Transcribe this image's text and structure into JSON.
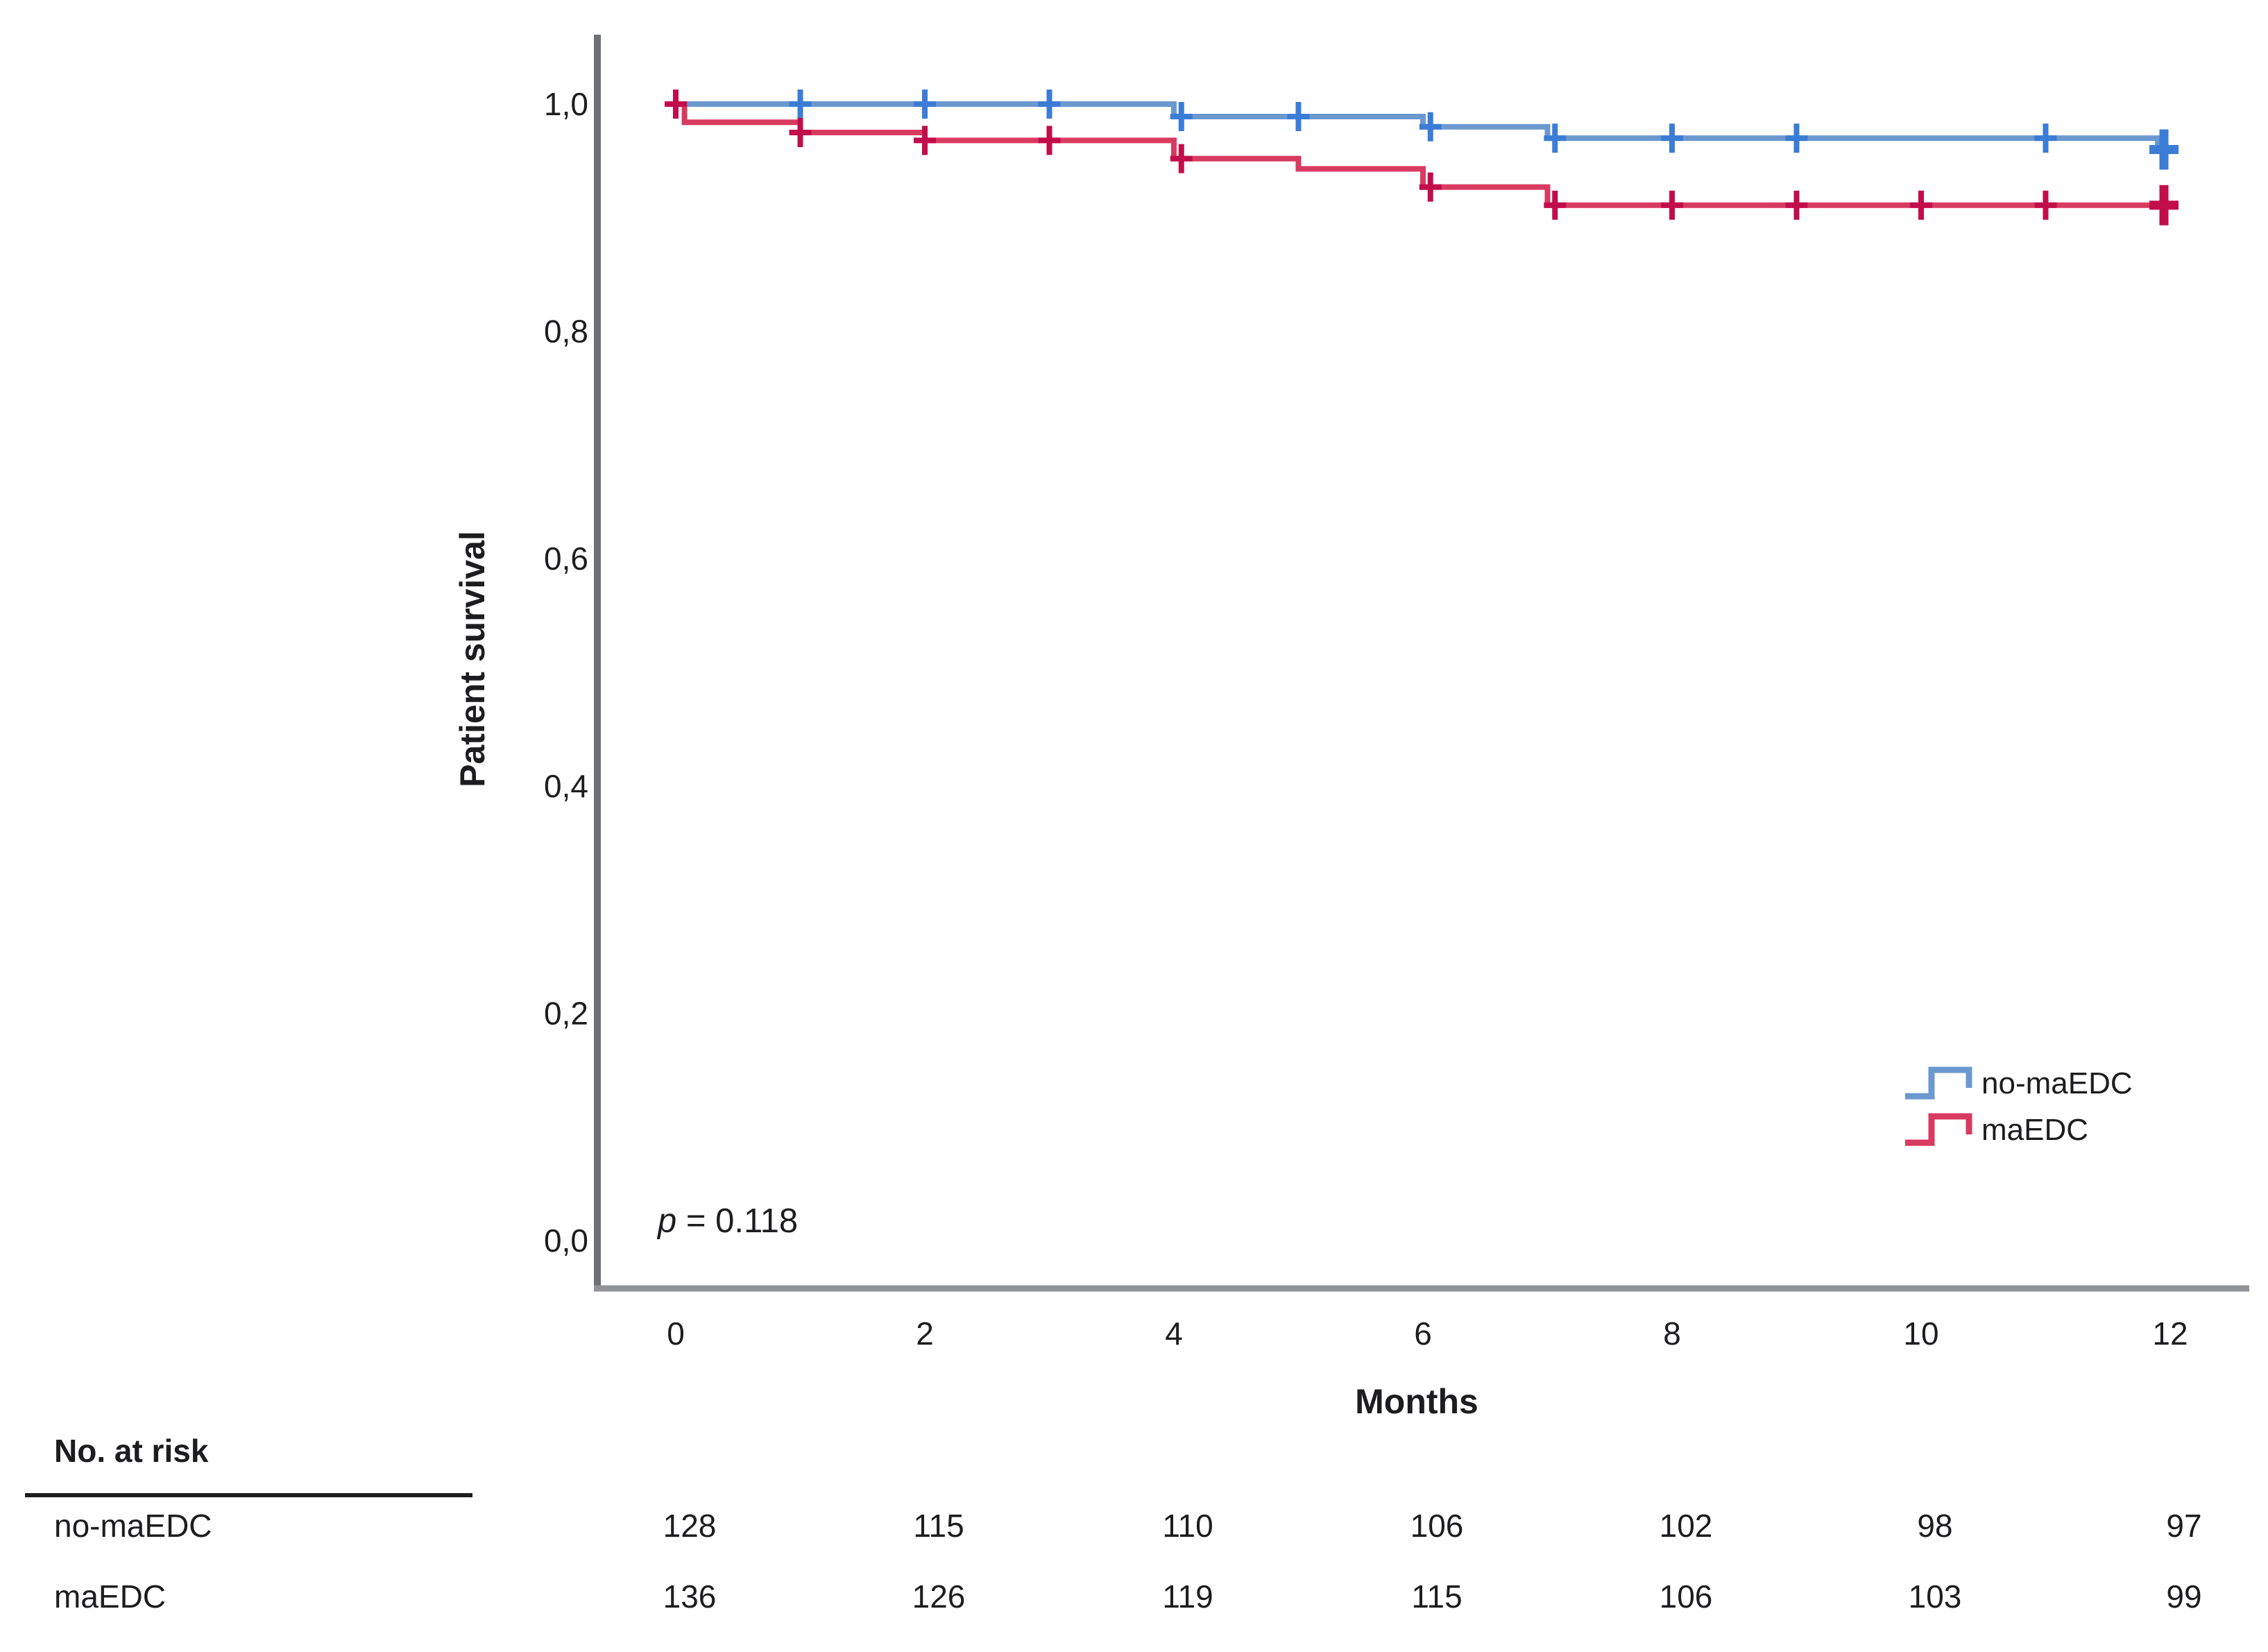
{
  "figure": {
    "background": "#ffffff",
    "text_color": "#1d1d1f",
    "y_axis_color": "#6e7073",
    "x_axis_color": "#919396"
  },
  "chart_data": {
    "type": "line",
    "subtype": "kaplan_meier_step_curves",
    "title": "",
    "xlabel": "Months",
    "ylabel": "Patient survival",
    "xlim": [
      0,
      12
    ],
    "ylim": [
      0.0,
      1.0
    ],
    "grid": false,
    "x_ticks": [
      "0",
      "2",
      "4",
      "6",
      "8",
      "10",
      "12"
    ],
    "x_tick_values": [
      0,
      2,
      4,
      6,
      8,
      10,
      12
    ],
    "y_ticks": [
      {
        "label": "0,0",
        "value": 0.0
      },
      {
        "label": "0,2",
        "value": 0.2
      },
      {
        "label": "0,4",
        "value": 0.4
      },
      {
        "label": "0,6",
        "value": 0.6
      },
      {
        "label": "0,8",
        "value": 0.8
      },
      {
        "label": "1,0",
        "value": 1.0
      }
    ],
    "annotation": {
      "symbol": "p",
      "rest": " = 0.118"
    },
    "legend_position": "right-lower",
    "series": [
      {
        "name": "no-maEDC",
        "line_color": "#6B99CF",
        "marker_color": "#3B7CD6",
        "steps": [
          [
            0,
            1.0
          ],
          [
            4,
            0.989
          ],
          [
            6,
            0.98
          ],
          [
            7,
            0.97
          ],
          [
            11.9,
            0.96
          ]
        ],
        "end_month": 12.05,
        "censors": [
          [
            1,
            1.0
          ],
          [
            2,
            1.0
          ],
          [
            3,
            1.0
          ],
          [
            4.06,
            0.989
          ],
          [
            5,
            0.989
          ],
          [
            6.06,
            0.98
          ],
          [
            7.06,
            0.97
          ],
          [
            8,
            0.97
          ],
          [
            9,
            0.97
          ],
          [
            11,
            0.97
          ]
        ],
        "final_censor": [
          11.95,
          0.96
        ]
      },
      {
        "name": "maEDC",
        "line_color": "#D93A60",
        "marker_color": "#C20D4B",
        "steps": [
          [
            0,
            1.0
          ],
          [
            0.07,
            0.984
          ],
          [
            1,
            0.975
          ],
          [
            2,
            0.968
          ],
          [
            4,
            0.952
          ],
          [
            5,
            0.943
          ],
          [
            6,
            0.927
          ],
          [
            7,
            0.911
          ]
        ],
        "end_month": 12.05,
        "censors": [
          [
            0,
            1.0
          ],
          [
            1,
            0.975
          ],
          [
            2,
            0.968
          ],
          [
            3,
            0.968
          ],
          [
            4.06,
            0.952
          ],
          [
            6.06,
            0.927
          ],
          [
            7.06,
            0.911
          ],
          [
            8,
            0.911
          ],
          [
            9,
            0.911
          ],
          [
            10,
            0.911
          ],
          [
            11,
            0.911
          ]
        ],
        "final_censor": [
          11.95,
          0.911
        ]
      }
    ],
    "risk_table": {
      "header": "No. at risk",
      "months": [
        0,
        2,
        4,
        6,
        8,
        10,
        12
      ],
      "rows": [
        {
          "name": "no-maEDC",
          "values": [
            128,
            115,
            110,
            106,
            102,
            98,
            97
          ]
        },
        {
          "name": "maEDC",
          "values": [
            136,
            126,
            119,
            115,
            106,
            103,
            99
          ]
        }
      ]
    }
  }
}
